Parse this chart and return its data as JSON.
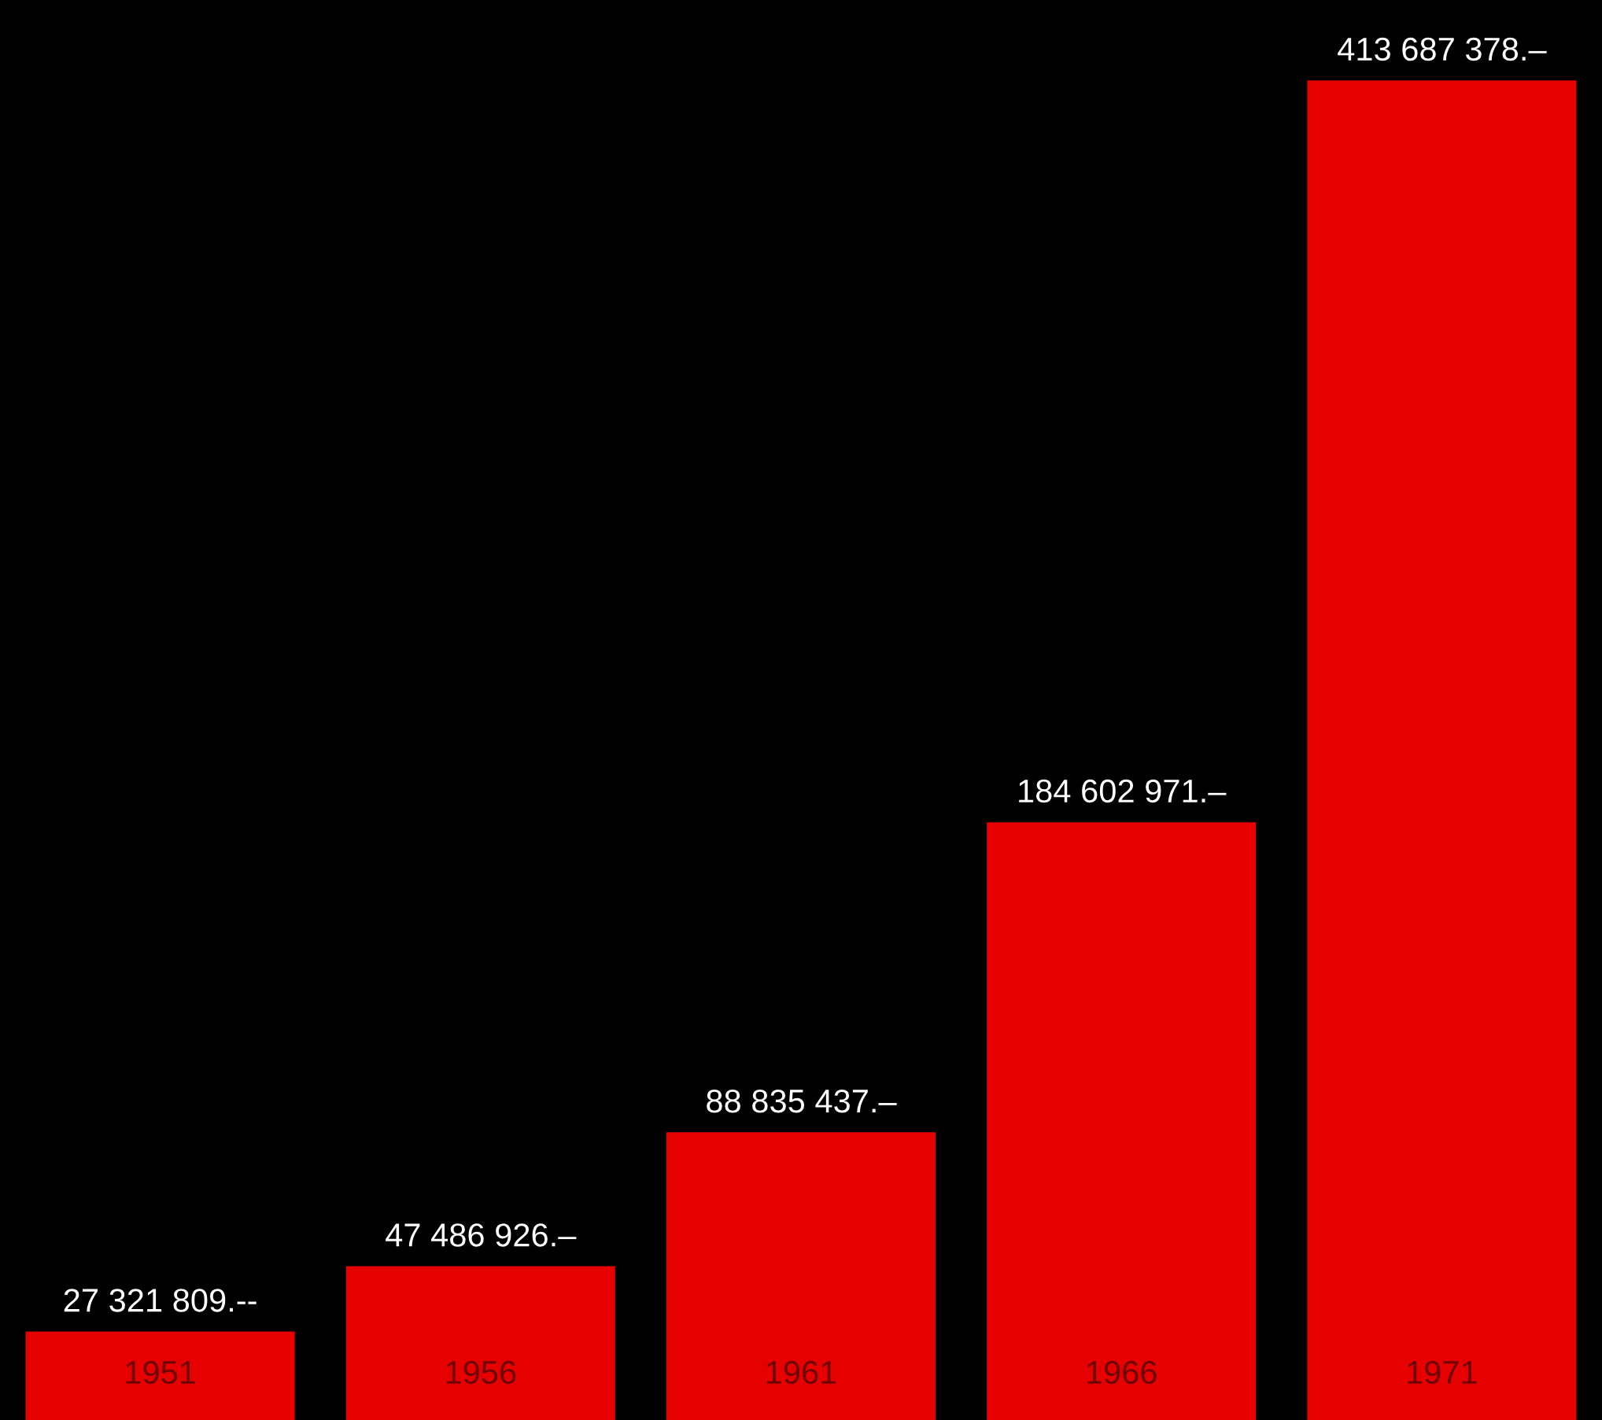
{
  "chart_data": {
    "type": "bar",
    "categories": [
      "1951",
      "1956",
      "1961",
      "1966",
      "1971"
    ],
    "values": [
      27321809,
      47486926,
      88835437,
      184602971,
      413687378
    ],
    "value_labels": [
      "27 321 809.--",
      "47 486 926.–",
      "88 835 437.–",
      "184 602 971.–",
      "413 687 378.–"
    ],
    "color": "#e60000",
    "grid": false,
    "legend": false
  }
}
